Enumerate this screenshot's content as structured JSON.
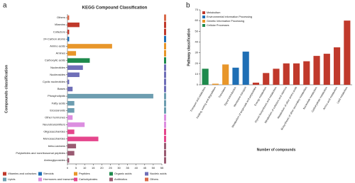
{
  "chart_data": [
    {
      "type": "bar",
      "orientation": "horizontal",
      "panel_label": "a",
      "title": "KEGG Compound Classification",
      "ylabel": "Compounds classification",
      "categories": [
        "Others",
        "Vitamins",
        "Cofactors",
        "24-Carbon atoms",
        "Amino acids",
        "Amines",
        "Carboxylic acids",
        "Nucleotides",
        "Nucleosides",
        "Cyclic nucleotides",
        "Bases",
        "Phospholipids",
        "Fatty acids",
        "Eicosanoids",
        "Other hormones",
        "Neurotransmitters",
        "Oligosaccharides",
        "Monosaccharides",
        "beta-Lactams",
        "Polyketides and nonribosomal peptides",
        "Aminoglycosides"
      ],
      "xlim": [
        0,
        55
      ],
      "xticks": [
        0,
        5,
        10,
        15,
        20,
        25,
        30,
        35,
        40,
        45,
        50,
        55
      ],
      "series": [
        {
          "name": "Vitamins and cofactors",
          "color": "#c0392b",
          "values": [
            null,
            7,
            1,
            null,
            null,
            null,
            null,
            null,
            null,
            null,
            null,
            null,
            null,
            null,
            null,
            null,
            null,
            null,
            null,
            null,
            null
          ]
        },
        {
          "name": "Steroids",
          "color": "#1f6fb5",
          "values": [
            null,
            null,
            null,
            1,
            null,
            null,
            null,
            null,
            null,
            null,
            null,
            null,
            null,
            null,
            null,
            null,
            null,
            null,
            null,
            null,
            null
          ]
        },
        {
          "name": "Peptides",
          "color": "#e8962a",
          "values": [
            null,
            null,
            null,
            null,
            26,
            5,
            null,
            null,
            null,
            null,
            null,
            null,
            null,
            null,
            null,
            null,
            null,
            null,
            null,
            null,
            null
          ]
        },
        {
          "name": "Organic acids",
          "color": "#1e8a4c",
          "values": [
            null,
            null,
            null,
            null,
            null,
            null,
            13,
            null,
            null,
            null,
            null,
            null,
            null,
            null,
            null,
            null,
            null,
            null,
            null,
            null,
            null
          ]
        },
        {
          "name": "Nucleic acids",
          "color": "#6f6fb8",
          "values": [
            null,
            null,
            null,
            null,
            null,
            null,
            null,
            9,
            7,
            1,
            3,
            null,
            null,
            null,
            null,
            null,
            null,
            null,
            null,
            null,
            null
          ]
        },
        {
          "name": "Lipids",
          "color": "#6d9db0",
          "values": [
            null,
            null,
            null,
            null,
            null,
            null,
            null,
            null,
            null,
            null,
            null,
            50,
            4,
            4,
            null,
            null,
            null,
            null,
            null,
            null,
            null
          ]
        },
        {
          "name": "Hormones and transmitters",
          "color": "#dc8ee0",
          "values": [
            null,
            null,
            null,
            null,
            null,
            null,
            null,
            null,
            null,
            null,
            null,
            null,
            null,
            null,
            3,
            10,
            null,
            null,
            null,
            null,
            null
          ]
        },
        {
          "name": "Carbohydrates",
          "color": "#e5468c",
          "values": [
            null,
            null,
            null,
            null,
            null,
            null,
            null,
            null,
            null,
            null,
            null,
            null,
            null,
            null,
            null,
            null,
            4,
            18,
            null,
            null,
            null
          ]
        },
        {
          "name": "Antibiotics",
          "color": "#9a5b72",
          "values": [
            null,
            null,
            null,
            null,
            null,
            null,
            null,
            null,
            null,
            null,
            null,
            null,
            null,
            null,
            null,
            null,
            null,
            null,
            5,
            4,
            1
          ]
        },
        {
          "name": "Others",
          "color": "#d9694a",
          "values": [
            1,
            null,
            null,
            null,
            null,
            null,
            null,
            null,
            null,
            null,
            null,
            null,
            null,
            null,
            null,
            null,
            null,
            null,
            null,
            null,
            null
          ]
        }
      ]
    },
    {
      "type": "bar",
      "orientation": "vertical",
      "panel_label": "b",
      "ylabel": "Pathway classification",
      "xlabel": "Number of compounds",
      "categories": [
        "Transport and catabolism",
        "Folding, sorting and degradation",
        "Translation",
        "Signal transduction",
        "Membrane transport",
        "Metabolism of terpenoids and polyketides",
        "Energy metabolism",
        "Glycan biosynthesis and metabolism",
        "Metabolism of cofactors and vitamins",
        "Metabolism of other amino acids",
        "Biosynthesis of other secondary metabolites",
        "Nucleotide metabolism",
        "Carbohydrate metabolism",
        "Amino acid metabolism",
        "Lipid metabolism"
      ],
      "ylim": [
        0,
        70
      ],
      "yticks": [
        0,
        10,
        20,
        30,
        40,
        50,
        60,
        70
      ],
      "series": [
        {
          "name": "Metabolism",
          "color": "#c0392b",
          "values": [
            null,
            null,
            null,
            null,
            null,
            2,
            11,
            15,
            20,
            20,
            22,
            27,
            29,
            35,
            60
          ]
        },
        {
          "name": "Environmental Information Processing",
          "color": "#1f6fb5",
          "values": [
            null,
            null,
            null,
            16,
            31,
            null,
            null,
            null,
            null,
            null,
            null,
            null,
            null,
            null,
            null
          ]
        },
        {
          "name": "Genetic Information Processing",
          "color": "#e8962a",
          "values": [
            null,
            1,
            19,
            null,
            null,
            null,
            null,
            null,
            null,
            null,
            null,
            null,
            null,
            null,
            null
          ]
        },
        {
          "name": "Cellular Processes",
          "color": "#1e8a4c",
          "values": [
            15,
            null,
            null,
            null,
            null,
            null,
            null,
            null,
            null,
            null,
            null,
            null,
            null,
            null,
            null
          ]
        }
      ]
    }
  ]
}
